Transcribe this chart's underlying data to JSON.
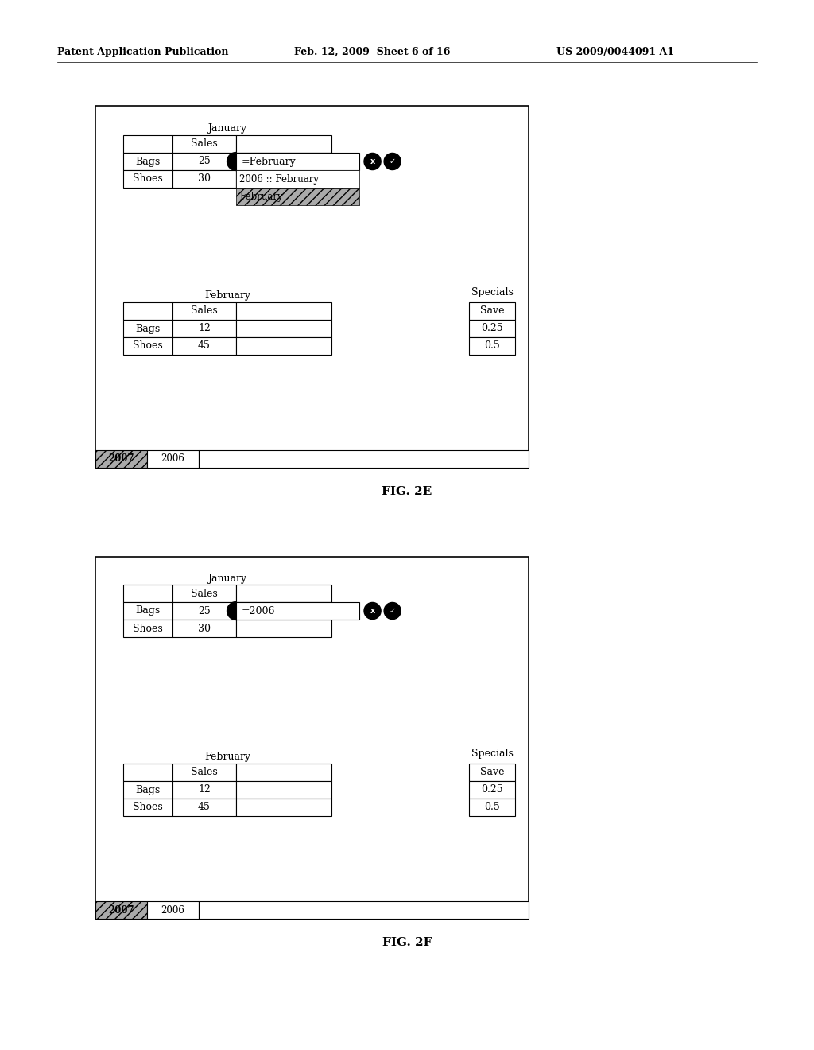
{
  "bg_color": "#ffffff",
  "header_text": "Patent Application Publication",
  "header_date": "Feb. 12, 2009  Sheet 6 of 16",
  "header_patent": "US 2009/0044091 A1",
  "fig2e_label": "FIG. 2E",
  "fig2f_label": "FIG. 2F",
  "tab_2007": "2007",
  "tab_2006": "2006",
  "jan_label": "January",
  "feb_label": "February",
  "specials_label": "Specials",
  "row_labels": [
    "Bags",
    "Shoes"
  ],
  "sales_label": "Sales",
  "jan_data_2e": [
    "25",
    "30"
  ],
  "feb_data": [
    "12",
    "45"
  ],
  "specials_data": [
    "Save",
    "0.25",
    "0.5"
  ],
  "formula_2e": "=February",
  "dropdown_line1": "2006 :: February",
  "dropdown_line2": "February",
  "formula_2f": "=2006"
}
